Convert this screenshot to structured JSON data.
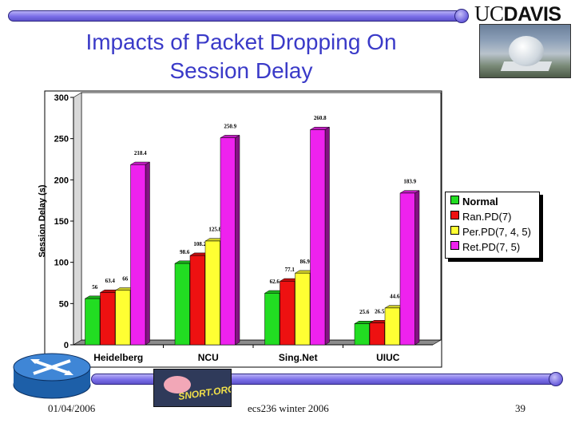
{
  "slide": {
    "title_line1": "Impacts of Packet Dropping On",
    "title_line2": "Session Delay",
    "logo_uc": "UC",
    "logo_davis": "DAVIS",
    "footer_date": "01/04/2006",
    "footer_course": "ecs236 winter 2006",
    "page_number": "39",
    "snort_label": "SNORT.ORG"
  },
  "chart_data": {
    "type": "bar",
    "title": "",
    "xlabel": "",
    "ylabel": "Session Delay (s)",
    "ylim": [
      0,
      300
    ],
    "yticks": [
      0,
      50,
      100,
      150,
      200,
      250,
      300
    ],
    "grid": false,
    "legend_position": "right",
    "categories": [
      "Heidelberg",
      "NCU",
      "Sing.Net",
      "UIUC"
    ],
    "series": [
      {
        "name": "Normal",
        "color": "#22dd22",
        "values": [
          56,
          98.6,
          62.6,
          25.6
        ],
        "labels": [
          "56",
          "98.6",
          "62.6",
          "25.6"
        ]
      },
      {
        "name": "Ran.PD(7)",
        "color": "#ee1111",
        "values": [
          63.4,
          108.2,
          77.1,
          26.5
        ],
        "labels": [
          "63.4",
          "108.2",
          "77.1",
          "26.5"
        ]
      },
      {
        "name": "Per.PD(7, 4, 5)",
        "color": "#ffff33",
        "values": [
          66,
          125.8,
          86.9,
          44.6
        ],
        "labels": [
          "66",
          "125.8",
          "86.9",
          "44.6"
        ]
      },
      {
        "name": "Ret.PD(7, 5)",
        "color": "#ee22ee",
        "values": [
          218.4,
          250.9,
          260.8,
          183.9
        ],
        "labels": [
          "218.4",
          "250.9",
          "260.8",
          "183.9"
        ]
      }
    ]
  }
}
